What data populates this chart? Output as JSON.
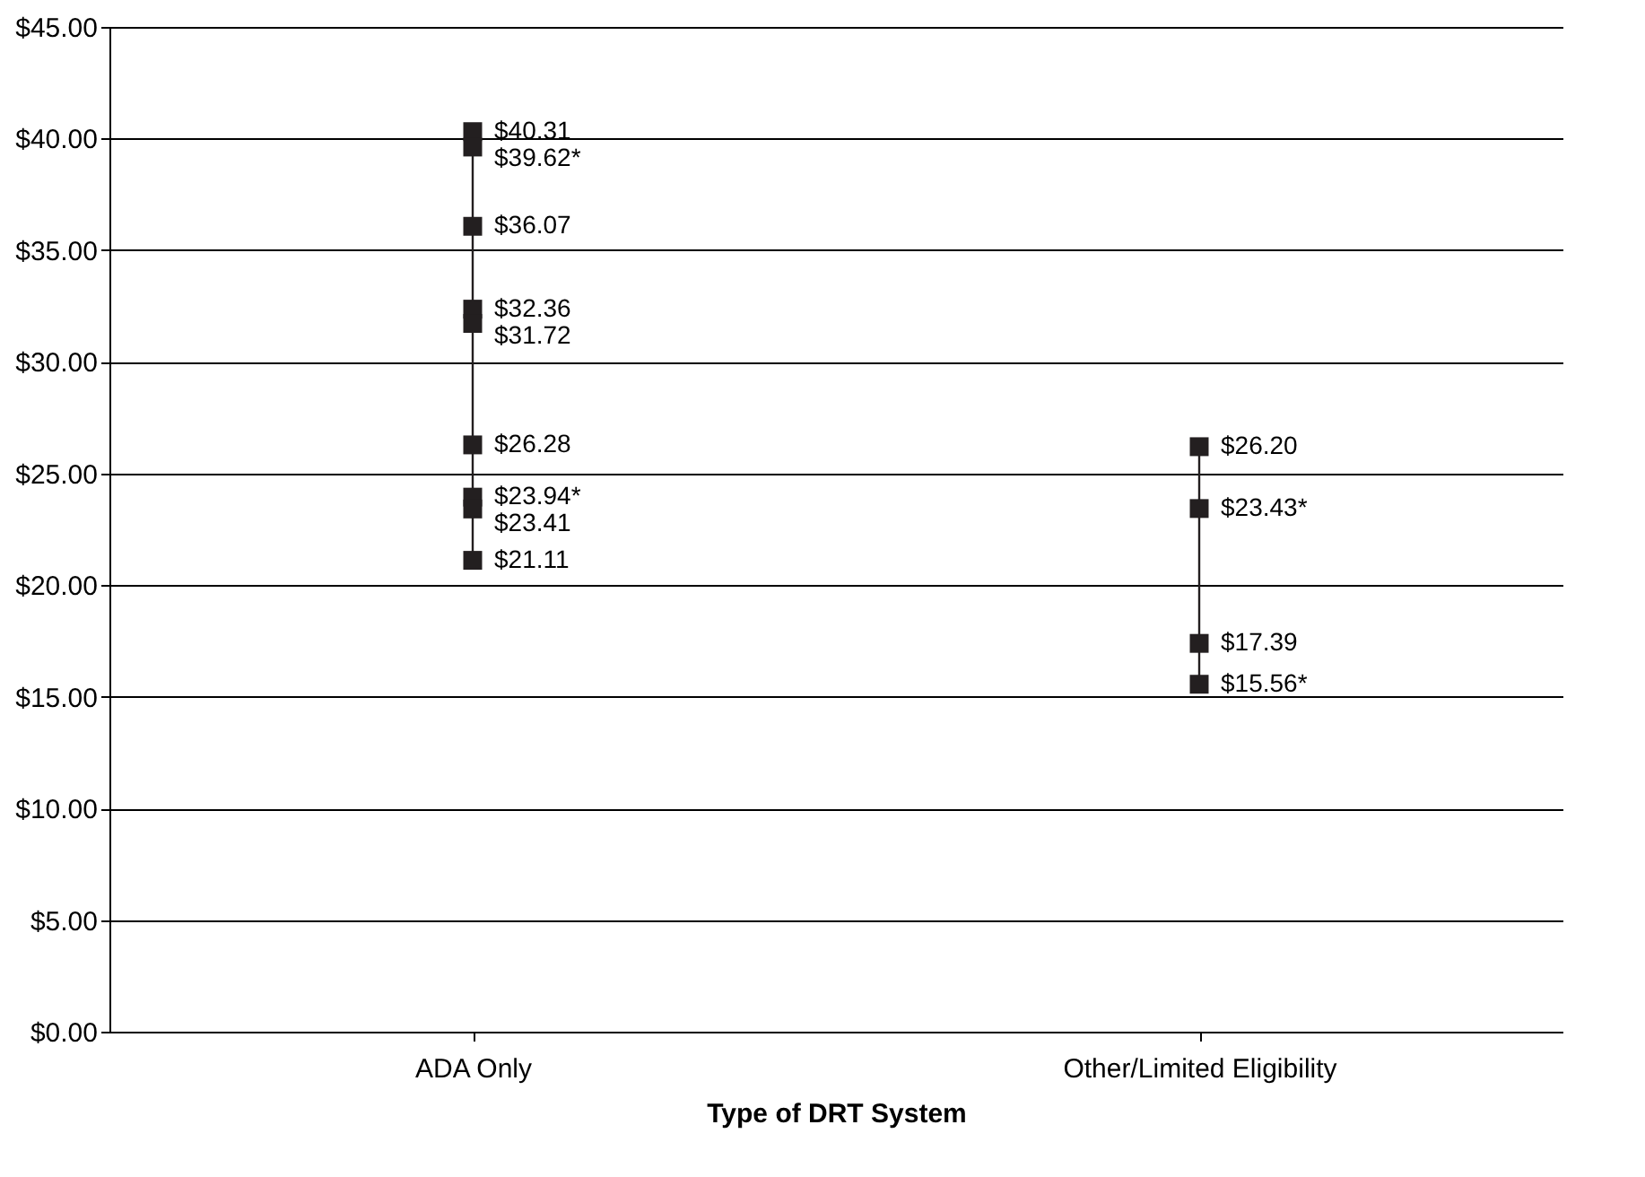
{
  "chart_data": {
    "type": "scatter",
    "xlabel": "Type of DRT System",
    "categories": [
      "ADA Only",
      "Other/Limited Eligibility"
    ],
    "series": [
      {
        "type": "line",
        "color": "#231f20",
        "marker": "none",
        "x": [
          "ADA Only",
          "ADA Only"
        ],
        "values": [
          21.11,
          40.31
        ]
      },
      {
        "type": "line",
        "color": "#231f20",
        "marker": "none",
        "x": [
          "Other/Limited Eligibility",
          "Other/Limited Eligibility"
        ],
        "values": [
          15.56,
          26.2
        ]
      },
      {
        "color": "#231f20",
        "x": [
          "ADA Only",
          "ADA Only",
          "ADA Only",
          "ADA Only",
          "ADA Only",
          "ADA Only",
          "ADA Only",
          "ADA Only",
          "ADA Only",
          "Other/Limited Eligibility",
          "Other/Limited Eligibility",
          "Other/Limited Eligibility",
          "Other/Limited Eligibility"
        ],
        "values": [
          40.31,
          39.62,
          36.07,
          32.36,
          31.72,
          26.28,
          23.94,
          23.41,
          21.11,
          26.2,
          23.43,
          17.39,
          15.56
        ],
        "value_labels": [
          "$40.31",
          "$39.62*",
          "$36.07",
          "$32.36",
          "$31.72",
          "$26.28",
          "$23.94*",
          "$23.41",
          "$21.11",
          "$26.20",
          "$23.43*",
          "$17.39",
          "$15.56*"
        ]
      }
    ],
    "ylim": [
      0,
      45
    ],
    "yticks": [
      {
        "value": 0,
        "label": "$0.00"
      },
      {
        "value": 5,
        "label": "$5.00"
      },
      {
        "value": 10,
        "label": "$10.00"
      },
      {
        "value": 15,
        "label": "$15.00"
      },
      {
        "value": 20,
        "label": "$20.00"
      },
      {
        "value": 25,
        "label": "$25.00"
      },
      {
        "value": 30,
        "label": "$30.00"
      },
      {
        "value": 35,
        "label": "$35.00"
      },
      {
        "value": 40,
        "label": "$40.00"
      },
      {
        "value": 45,
        "label": "$45.00"
      }
    ],
    "grid": "y",
    "marker": "square",
    "line_style": "solid",
    "legend": false
  }
}
